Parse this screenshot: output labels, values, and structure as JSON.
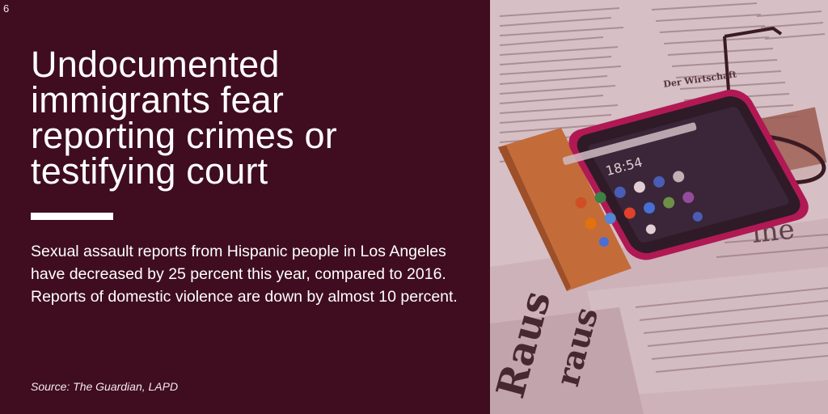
{
  "page_number": "6",
  "headline": "Undocumented immigrants fear reporting crimes or testifying court",
  "body": "Sexual assault reports from Hispanic people in Los Angeles have decreased by 25 percent this year, compared to 2016. Reports of domestic violence are down by almost 10 percent.",
  "source": "Source: The Guardian, LAPD",
  "photo": {
    "phone_time": "18:54",
    "newspaper_words": [
      "Raus",
      "raus",
      "Der Wirtschaft",
      "ine"
    ]
  },
  "colors": {
    "panel_background": "#3f0d1f",
    "text": "#ffffff",
    "phone_case": "#c2185b",
    "phone_flap": "#d9823a"
  },
  "icons": [
    "newspaper-photo-icon",
    "smartphone-icon",
    "eyeglasses-icon"
  ]
}
